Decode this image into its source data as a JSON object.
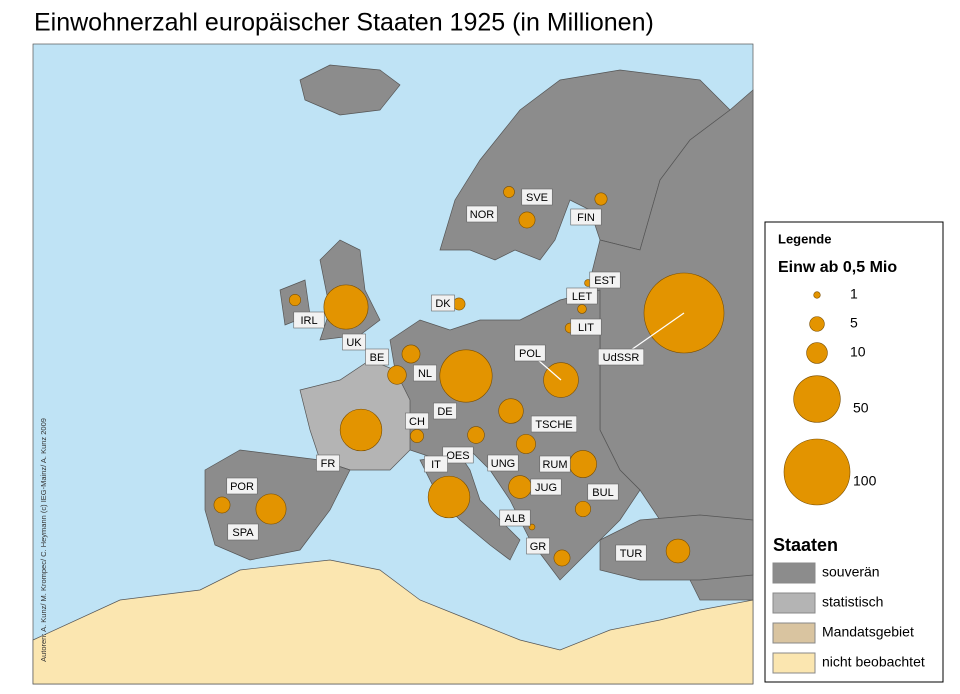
{
  "title": "Einwohnerzahl europäischer Staaten 1925 (in Millionen)",
  "side_note": "Autoren: A. Kunz/ M. Krompec/ C. Heymann (c) IEG-Mainz/ A. Kunz 2009",
  "bubble_color": "#e39400",
  "countries": [
    {
      "label": "NOR",
      "population": 2.8
    },
    {
      "label": "SVE",
      "population": 6
    },
    {
      "label": "FIN",
      "population": 3.5
    },
    {
      "label": "EST",
      "population": 1.1
    },
    {
      "label": "LET",
      "population": 1.8
    },
    {
      "label": "LIT",
      "population": 2.2
    },
    {
      "label": "DK",
      "population": 3.4
    },
    {
      "label": "IRL",
      "population": 3
    },
    {
      "label": "UK",
      "population": 45
    },
    {
      "label": "BE",
      "population": 8
    },
    {
      "label": "NL",
      "population": 7.5
    },
    {
      "label": "DE",
      "population": 63
    },
    {
      "label": "UdSSR",
      "population": 147
    },
    {
      "label": "POL",
      "population": 28
    },
    {
      "label": "TSCHE",
      "population": 14
    },
    {
      "label": "CH",
      "population": 4
    },
    {
      "label": "FR",
      "population": 40
    },
    {
      "label": "OES",
      "population": 6.5
    },
    {
      "label": "IT",
      "population": 40
    },
    {
      "label": "UNG",
      "population": 8.5
    },
    {
      "label": "RUM",
      "population": 17
    },
    {
      "label": "JUG",
      "population": 12
    },
    {
      "label": "BUL",
      "population": 5.5
    },
    {
      "label": "POR",
      "population": 6
    },
    {
      "label": "SPA",
      "population": 21
    },
    {
      "label": "ALB",
      "population": 0.8
    },
    {
      "label": "GR",
      "population": 6
    },
    {
      "label": "TUR",
      "population": 13
    }
  ],
  "legend": {
    "title": "Legende",
    "subtitle": "Einw ab 0,5 Mio",
    "sizes": [
      1,
      5,
      10,
      50,
      100
    ],
    "states_title": "Staaten",
    "states": [
      {
        "label": "souverän",
        "color": "#8c8c8c"
      },
      {
        "label": "statistisch",
        "color": "#b4b4b4"
      },
      {
        "label": "Mandatsgebiet",
        "color": "#d9c4a0"
      },
      {
        "label": "nicht beobachtet",
        "color": "#fbe6b0"
      }
    ]
  }
}
